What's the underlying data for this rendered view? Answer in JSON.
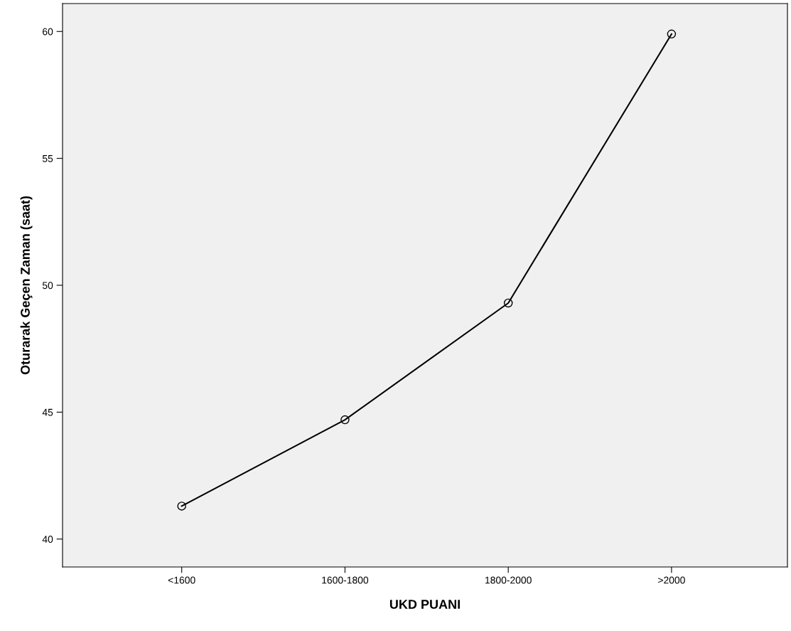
{
  "chart_data": {
    "type": "line",
    "xlabel": "UKD PUANI",
    "ylabel": "Oturarak Geçen Zaman (saat)",
    "categories": [
      "<1600",
      "1600-1800",
      "1800-2000",
      ">2000"
    ],
    "series": [
      {
        "color": "#000000",
        "values": [
          41.3,
          44.7,
          49.3,
          59.9
        ]
      }
    ],
    "ylim": [
      38.9,
      61.1
    ],
    "yticks": [
      40,
      45,
      50,
      55,
      60
    ],
    "marker": "circle",
    "line_style": "solid",
    "grid": false,
    "legend": false
  }
}
